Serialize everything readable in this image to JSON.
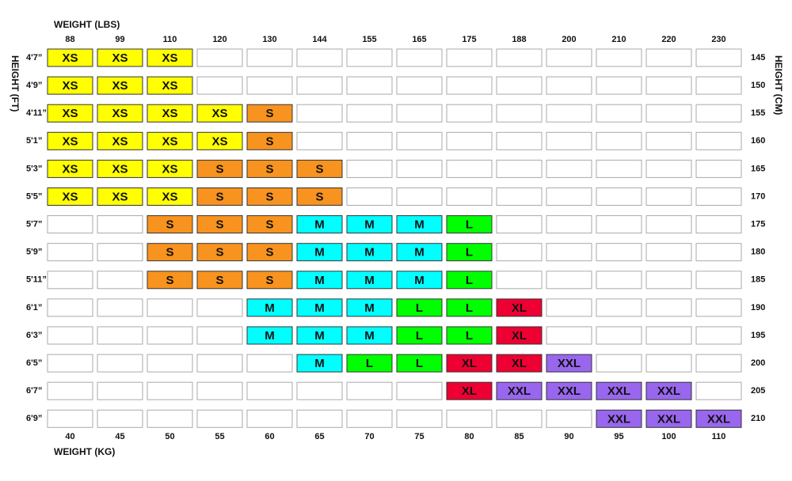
{
  "top_axis_label": "WEIGHT (LBS)",
  "bottom_axis_label": "WEIGHT (KG)",
  "left_axis_label": "HEIGHT (FT)",
  "right_axis_label": "HEIGHT (CM)",
  "weights_lbs": [
    88,
    99,
    110,
    120,
    130,
    144,
    155,
    165,
    175,
    188,
    200,
    210,
    220,
    230
  ],
  "weights_kg": [
    40,
    45,
    50,
    55,
    60,
    65,
    70,
    75,
    80,
    85,
    90,
    95,
    100,
    110
  ],
  "heights_ft": [
    "4'7”",
    "4'9”",
    "4'11”",
    "5'1”",
    "5'3”",
    "5'5”",
    "5'7”",
    "5'9”",
    "5'11”",
    "6'1”",
    "6'3”",
    "6'5”",
    "6'7”",
    "6'9”"
  ],
  "heights_cm": [
    145,
    150,
    155,
    160,
    165,
    170,
    175,
    180,
    185,
    190,
    195,
    200,
    205,
    210
  ],
  "size_colors": {
    "XS": "#ffff00",
    "S": "#f7931e",
    "M": "#00ffff",
    "L": "#00ff00",
    "XL": "#ee0033",
    "XXL": "#9966ee"
  },
  "grid": [
    [
      "XS",
      "XS",
      "XS",
      null,
      null,
      null,
      null,
      null,
      null,
      null,
      null,
      null,
      null,
      null
    ],
    [
      "XS",
      "XS",
      "XS",
      null,
      null,
      null,
      null,
      null,
      null,
      null,
      null,
      null,
      null,
      null
    ],
    [
      "XS",
      "XS",
      "XS",
      "XS",
      "S",
      null,
      null,
      null,
      null,
      null,
      null,
      null,
      null,
      null
    ],
    [
      "XS",
      "XS",
      "XS",
      "XS",
      "S",
      null,
      null,
      null,
      null,
      null,
      null,
      null,
      null,
      null
    ],
    [
      "XS",
      "XS",
      "XS",
      "S",
      "S",
      "S",
      null,
      null,
      null,
      null,
      null,
      null,
      null,
      null
    ],
    [
      "XS",
      "XS",
      "XS",
      "S",
      "S",
      "S",
      null,
      null,
      null,
      null,
      null,
      null,
      null,
      null
    ],
    [
      null,
      null,
      "S",
      "S",
      "S",
      "M",
      "M",
      "M",
      "L",
      null,
      null,
      null,
      null,
      null
    ],
    [
      null,
      null,
      "S",
      "S",
      "S",
      "M",
      "M",
      "M",
      "L",
      null,
      null,
      null,
      null,
      null
    ],
    [
      null,
      null,
      "S",
      "S",
      "S",
      "M",
      "M",
      "M",
      "L",
      null,
      null,
      null,
      null,
      null
    ],
    [
      null,
      null,
      null,
      null,
      "M",
      "M",
      "M",
      "L",
      "L",
      "XL",
      null,
      null,
      null,
      null
    ],
    [
      null,
      null,
      null,
      null,
      "M",
      "M",
      "M",
      "L",
      "L",
      "XL",
      null,
      null,
      null,
      null
    ],
    [
      null,
      null,
      null,
      null,
      null,
      "M",
      "L",
      "L",
      "XL",
      "XL",
      "XXL",
      null,
      null,
      null
    ],
    [
      null,
      null,
      null,
      null,
      null,
      null,
      null,
      null,
      "XL",
      "XXL",
      "XXL",
      "XXL",
      "XXL",
      null
    ],
    [
      null,
      null,
      null,
      null,
      null,
      null,
      null,
      null,
      null,
      null,
      null,
      "XXL",
      "XXL",
      "XXL"
    ]
  ]
}
